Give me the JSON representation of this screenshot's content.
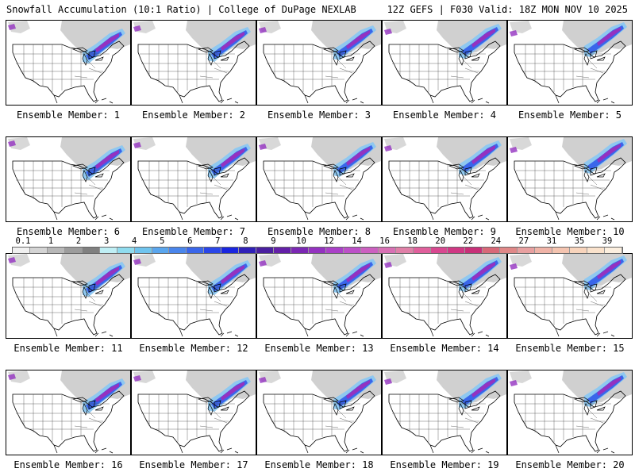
{
  "header": {
    "title_left": "Snowfall Accumulation (10:1 Ratio) | College of DuPage NEXLAB",
    "title_right": "12Z GEFS | F030 Valid: 18Z MON NOV 10 2025"
  },
  "panels": [
    {
      "label": "Ensemble Member: 1"
    },
    {
      "label": "Ensemble Member: 2"
    },
    {
      "label": "Ensemble Member: 3"
    },
    {
      "label": "Ensemble Member: 4"
    },
    {
      "label": "Ensemble Member: 5"
    },
    {
      "label": "Ensemble Member: 6"
    },
    {
      "label": "Ensemble Member: 7"
    },
    {
      "label": "Ensemble Member: 8"
    },
    {
      "label": "Ensemble Member: 9"
    },
    {
      "label": "Ensemble Member: 10"
    },
    {
      "label": "Ensemble Member: 11"
    },
    {
      "label": "Ensemble Member: 12"
    },
    {
      "label": "Ensemble Member: 13"
    },
    {
      "label": "Ensemble Member: 14"
    },
    {
      "label": "Ensemble Member: 15"
    },
    {
      "label": "Ensemble Member: 16"
    },
    {
      "label": "Ensemble Member: 17"
    },
    {
      "label": "Ensemble Member: 18"
    },
    {
      "label": "Ensemble Member: 19"
    },
    {
      "label": "Ensemble Member: 20"
    }
  ],
  "colorbar": {
    "labels": [
      "0.1",
      "1",
      "2",
      "3",
      "4",
      "5",
      "6",
      "7",
      "8",
      "9",
      "10",
      "12",
      "14",
      "16",
      "18",
      "20",
      "22",
      "24",
      "27",
      "31",
      "35",
      "39"
    ],
    "colors": [
      "#f0f0f0",
      "#d4d4d4",
      "#b8b8b8",
      "#9c9c9c",
      "#808080",
      "#bfeff5",
      "#8fdcef",
      "#6fc4ee",
      "#5aa6ee",
      "#4a86ec",
      "#3a66ea",
      "#2a46e8",
      "#1a26e0",
      "#3020b8",
      "#4a1fa0",
      "#6420a8",
      "#7c28b4",
      "#9432c0",
      "#aa40c8",
      "#bc50c8",
      "#cc60c0",
      "#d870b4",
      "#e080a8",
      "#e0609c",
      "#d84890",
      "#d03884",
      "#c83078",
      "#d86878",
      "#e08888",
      "#e8a0a0",
      "#f0b4a8",
      "#f4c4b0",
      "#f8d4bc",
      "#fae2cc",
      "#fcefdf"
    ]
  },
  "map_colors": {
    "land": "#ffffff",
    "light_snow": "#c8c8c8",
    "moderate_snow": "#8fc8f0",
    "heavy_snow": "#3a66ea",
    "extreme_snow": "#9432c0"
  }
}
